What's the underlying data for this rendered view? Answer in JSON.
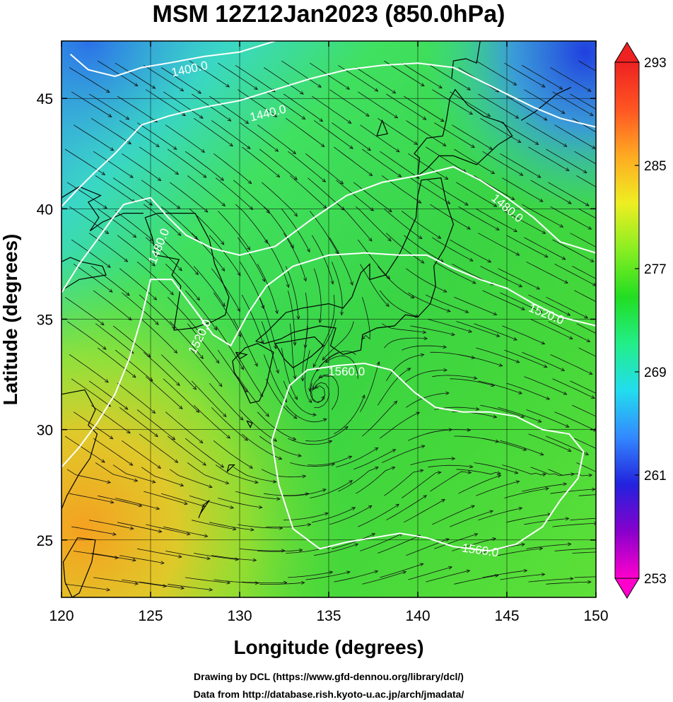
{
  "chart_data": {
    "type": "heatmap",
    "title": "MSM 12Z12Jan2023 (850.0hPa)",
    "xlabel": "Longitude (degrees)",
    "ylabel": "Latitude  (degrees)",
    "xlim": [
      120,
      150
    ],
    "ylim": [
      22.4,
      47.6
    ],
    "x_ticks": [
      120,
      125,
      130,
      135,
      140,
      145,
      150
    ],
    "y_ticks": [
      25,
      30,
      35,
      40,
      45
    ],
    "grid": true,
    "colorbar": {
      "ticks": [
        253,
        261,
        269,
        277,
        285,
        293
      ],
      "min": 253,
      "max": 293,
      "colors": [
        "#ff00cc",
        "#8800cc",
        "#2222dd",
        "#3388ff",
        "#22ddee",
        "#22ee88",
        "#22dd22",
        "#88ee22",
        "#eeee22",
        "#ffaa22",
        "#ff5522",
        "#ee2222"
      ]
    },
    "contours": [
      {
        "label": "1400.0",
        "points": [
          [
            120.5,
            47.0
          ],
          [
            121.5,
            46.3
          ],
          [
            123,
            46.0
          ],
          [
            124.5,
            46.4
          ],
          [
            126,
            46.6
          ],
          [
            128,
            46.9
          ],
          [
            130,
            47.1
          ],
          [
            132,
            47.6
          ]
        ]
      },
      {
        "label": "1440.0",
        "points": [
          [
            120,
            40.1
          ],
          [
            120.8,
            40.8
          ],
          [
            121.8,
            41.6
          ],
          [
            123,
            42.5
          ],
          [
            124.5,
            43.8
          ],
          [
            126,
            44.2
          ],
          [
            128,
            44.6
          ],
          [
            130,
            44.9
          ],
          [
            132,
            45.4
          ],
          [
            134,
            45.9
          ],
          [
            136,
            46.3
          ],
          [
            138,
            46.5
          ],
          [
            140,
            46.6
          ],
          [
            142,
            46.4
          ],
          [
            143.5,
            45.8
          ],
          [
            145,
            45.2
          ],
          [
            146.5,
            44.6
          ],
          [
            148,
            44.1
          ],
          [
            150,
            43.7
          ]
        ]
      },
      {
        "label": "1480.0",
        "points": [
          [
            120,
            36.2
          ],
          [
            121,
            37.5
          ],
          [
            122,
            38.6
          ],
          [
            122.8,
            39.5
          ],
          [
            123.5,
            40.2
          ],
          [
            125,
            40.5
          ],
          [
            126,
            39.6
          ],
          [
            127,
            38.8
          ],
          [
            128.5,
            38.2
          ],
          [
            130,
            37.9
          ],
          [
            132,
            38.3
          ],
          [
            134,
            39.5
          ],
          [
            136,
            40.6
          ],
          [
            138,
            41.2
          ],
          [
            140,
            41.5
          ],
          [
            142,
            41.9
          ],
          [
            143.5,
            41.3
          ],
          [
            145,
            40.5
          ],
          [
            146.5,
            39.6
          ],
          [
            148,
            38.5
          ],
          [
            150,
            38.0
          ]
        ]
      },
      {
        "label": "1520.0",
        "points": [
          [
            120,
            28.3
          ],
          [
            121,
            29.2
          ],
          [
            122,
            30.3
          ],
          [
            123,
            31.6
          ],
          [
            123.8,
            33.2
          ],
          [
            124.5,
            35.1
          ],
          [
            125,
            36.8
          ],
          [
            126.2,
            36.8
          ],
          [
            127.5,
            35.4
          ],
          [
            128.5,
            34.3
          ],
          [
            129.5,
            33.8
          ],
          [
            130.5,
            35.3
          ],
          [
            131.5,
            36.5
          ],
          [
            133,
            37.4
          ],
          [
            135,
            37.9
          ],
          [
            137,
            38.0
          ],
          [
            139,
            37.9
          ],
          [
            140.5,
            37.9
          ],
          [
            142,
            37.3
          ],
          [
            143.5,
            36.8
          ],
          [
            145,
            36.4
          ],
          [
            146.5,
            35.7
          ],
          [
            148,
            35.1
          ],
          [
            150,
            34.7
          ]
        ]
      },
      {
        "label": "1560.0",
        "points": [
          [
            132.3,
            30.8
          ],
          [
            132.8,
            32.0
          ],
          [
            133.8,
            32.7
          ],
          [
            135.5,
            32.9
          ],
          [
            137,
            33.0
          ],
          [
            138.5,
            32.7
          ],
          [
            139.8,
            31.7
          ],
          [
            141,
            31.0
          ],
          [
            142.5,
            30.8
          ],
          [
            144,
            30.8
          ],
          [
            145.5,
            30.6
          ],
          [
            147,
            30.0
          ],
          [
            148.5,
            29.8
          ],
          [
            149.3,
            29.0
          ],
          [
            149,
            27.8
          ],
          [
            148,
            26.8
          ],
          [
            147,
            25.6
          ],
          [
            145.5,
            24.8
          ],
          [
            144,
            24.5
          ],
          [
            142,
            24.7
          ],
          [
            140.5,
            25.1
          ],
          [
            139,
            25.3
          ],
          [
            137.5,
            25.1
          ],
          [
            136,
            24.9
          ],
          [
            134.5,
            24.6
          ],
          [
            133,
            25.5
          ],
          [
            132.2,
            27.5
          ],
          [
            131.8,
            29.5
          ],
          [
            132.3,
            30.8
          ]
        ]
      }
    ],
    "contour_labels": [
      {
        "text": "1400.0",
        "lon": 127.2,
        "lat": 46.3,
        "angle": -12
      },
      {
        "text": "1440.0",
        "lon": 131.6,
        "lat": 44.3,
        "angle": -14
      },
      {
        "text": "1480.0",
        "lon": 125.5,
        "lat": 38.3,
        "angle": -68
      },
      {
        "text": "1480.0",
        "lon": 145.0,
        "lat": 40.0,
        "angle": 40
      },
      {
        "text": "1520.0",
        "lon": 127.8,
        "lat": 34.2,
        "angle": -64
      },
      {
        "text": "1520.0",
        "lon": 147.2,
        "lat": 35.2,
        "angle": 22
      },
      {
        "text": "1560.0",
        "lon": 136.0,
        "lat": 32.6,
        "angle": 0
      },
      {
        "text": "1560.0",
        "lon": 143.5,
        "lat": 24.5,
        "angle": 8
      }
    ],
    "low_center": {
      "lon": 134.3,
      "lat": 31.5
    }
  },
  "credits": {
    "line1": "Drawing by DCL (https://www.gfd-dennou.org/library/dcl/)",
    "line2": "Data from http://database.rish.kyoto-u.ac.jp/arch/jmadata/"
  }
}
